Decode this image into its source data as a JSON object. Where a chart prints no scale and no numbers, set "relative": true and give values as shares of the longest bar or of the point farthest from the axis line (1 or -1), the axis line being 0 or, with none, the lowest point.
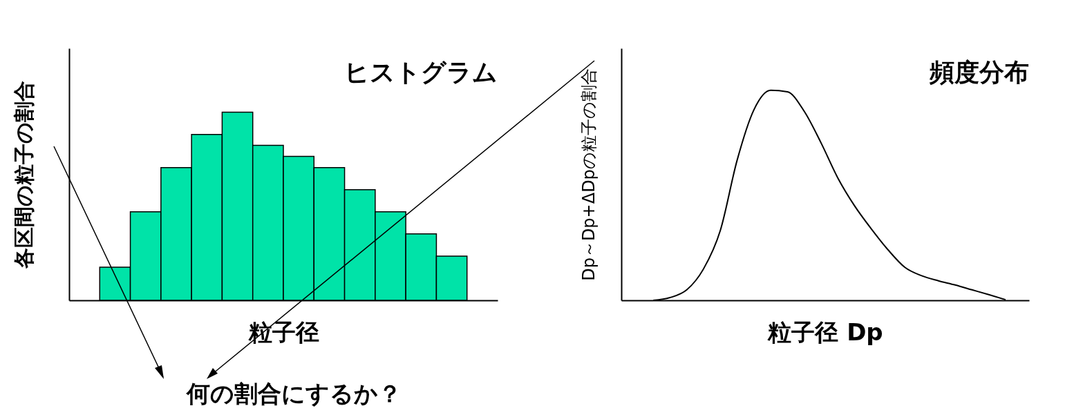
{
  "chart_data": [
    {
      "type": "bar",
      "title": "ヒストグラム",
      "xlabel": "粒子径",
      "ylabel": "各区間の粒子の割合",
      "relative": true,
      "categories": [
        null,
        null,
        null,
        null,
        null,
        null,
        null,
        null,
        null,
        null,
        null,
        null
      ],
      "values": [
        0.176,
        0.471,
        0.706,
        0.882,
        1,
        0.824,
        0.765,
        0.706,
        0.588,
        0.471,
        0.353,
        0.235
      ],
      "color": "#00e3a8",
      "annotations": [
        "何の割合にするか？"
      ]
    },
    {
      "type": "line",
      "title": "頻度分布",
      "xlabel": "粒子径 Dp",
      "ylabel": "Dp～Dp+ΔDpの粒子の割合",
      "relative": true,
      "categories": [
        null,
        null,
        null,
        null,
        null,
        null,
        null,
        null,
        null,
        null,
        null,
        null,
        null,
        null,
        null,
        null,
        null,
        null,
        null,
        null,
        null,
        null
      ],
      "values": [
        0,
        0.013,
        0.05,
        0.15,
        0.333,
        0.667,
        0.907,
        1,
        0.993,
        0.9,
        0.75,
        0.583,
        0.45,
        0.34,
        0.24,
        0.157,
        0.117,
        0.093,
        0.073,
        0.05,
        0.027,
        0.003
      ],
      "color": "#000000"
    }
  ]
}
